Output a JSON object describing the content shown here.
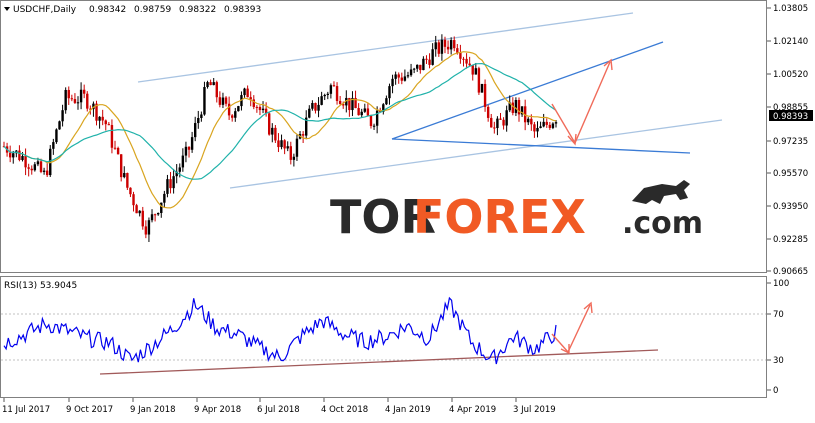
{
  "header": {
    "symbol_label": "USDCHF,Daily",
    "ohlc_values": [
      "0.98342",
      "0.98759",
      "0.98322",
      "0.98393"
    ]
  },
  "price_panel": {
    "y_ticks": [
      "1.03805",
      "1.02140",
      "1.00520",
      "0.98855",
      "0.97235",
      "0.95570",
      "0.93950",
      "0.92285",
      "0.90665"
    ],
    "current_price_label": "0.98393"
  },
  "rsi_panel": {
    "label": "RSI(13) 53.9045",
    "y_ticks": [
      "100",
      "70",
      "30",
      "0"
    ]
  },
  "x_axis": {
    "ticks": [
      "11 Jul 2017",
      "9 Oct 2017",
      "9 Jan 2018",
      "9 Apr 2018",
      "6 Jul 2018",
      "4 Oct 2018",
      "4 Jan 2019",
      "4 Apr 2019",
      "3 Jul 2019"
    ]
  },
  "watermark": {
    "prefix": "TOR",
    "main": "FOREX",
    "suffix": ".com"
  },
  "colors": {
    "bull_candle": "#000000",
    "bear_candle": "#cc0000",
    "ma_fast": "#d9a520",
    "ma_slow": "#20b2aa",
    "channel_outer": "#a9c4e2",
    "channel_inner": "#3a7bd5",
    "forecast_arrow": "#f06b5a",
    "rsi_line": "#0000ee",
    "rsi_trend": "#a15a5a",
    "watermark_dark": "#2a2a2a",
    "watermark_accent": "#f15a24"
  },
  "chart_data": [
    {
      "type": "candlestick",
      "title": "USDCHF,Daily",
      "x_start": "11 Jul 2017",
      "x_end": "3 Jul 2019",
      "ylim": [
        0.90665,
        1.03805
      ],
      "grid": false,
      "approx_close_path": [
        {
          "x": "11 Jul 2017",
          "y": 0.969
        },
        {
          "x": "Aug 2017",
          "y": 0.963
        },
        {
          "x": "Sep 2017",
          "y": 0.954
        },
        {
          "x": "9 Oct 2017",
          "y": 0.993
        },
        {
          "x": "Nov 2017",
          "y": 0.993
        },
        {
          "x": "Dec 2017",
          "y": 0.98
        },
        {
          "x": "9 Jan 2018",
          "y": 0.949
        },
        {
          "x": "Feb 2018",
          "y": 0.928
        },
        {
          "x": "Mar 2018",
          "y": 0.949
        },
        {
          "x": "9 Apr 2018",
          "y": 0.966
        },
        {
          "x": "May 2018",
          "y": 1.001
        },
        {
          "x": "Jun 2018",
          "y": 0.985
        },
        {
          "x": "6 Jul 2018",
          "y": 0.997
        },
        {
          "x": "Aug 2018",
          "y": 0.978
        },
        {
          "x": "Sep 2018",
          "y": 0.963
        },
        {
          "x": "4 Oct 2018",
          "y": 0.986
        },
        {
          "x": "Nov 2018",
          "y": 0.999
        },
        {
          "x": "Dec 2018",
          "y": 0.989
        },
        {
          "x": "4 Jan 2019",
          "y": 0.981
        },
        {
          "x": "Feb 2019",
          "y": 1.003
        },
        {
          "x": "Mar 2019",
          "y": 1.005
        },
        {
          "x": "4 Apr 2019",
          "y": 1.016
        },
        {
          "x": "Apr 2019",
          "y": 1.022
        },
        {
          "x": "May 2019",
          "y": 1.007
        },
        {
          "x": "Jun 2019",
          "y": 0.977
        },
        {
          "x": "3 Jul 2019",
          "y": 0.99
        },
        {
          "x": "Jul 2019",
          "y": 0.975
        },
        {
          "x": "Jul 2019 end",
          "y": 0.984
        }
      ]
    },
    {
      "type": "line",
      "title": "RSI(13) 53.9045",
      "ylim": [
        0,
        100
      ],
      "levels": [
        70,
        30
      ],
      "current": 53.9045,
      "approx_path": [
        {
          "x": "11 Jul 2017",
          "y": 44
        },
        {
          "x": "Aug 2017",
          "y": 52
        },
        {
          "x": "Sep 2017",
          "y": 62
        },
        {
          "x": "9 Oct 2017",
          "y": 55
        },
        {
          "x": "Nov 2017",
          "y": 48
        },
        {
          "x": "Dec 2017",
          "y": 44
        },
        {
          "x": "9 Jan 2018",
          "y": 28
        },
        {
          "x": "Feb 2018",
          "y": 42
        },
        {
          "x": "Mar 2018",
          "y": 58
        },
        {
          "x": "9 Apr 2018",
          "y": 80
        },
        {
          "x": "May 2018",
          "y": 58
        },
        {
          "x": "Jun 2018",
          "y": 52
        },
        {
          "x": "6 Jul 2018",
          "y": 40
        },
        {
          "x": "Aug 2018",
          "y": 30
        },
        {
          "x": "Sep 2018",
          "y": 50
        },
        {
          "x": "4 Oct 2018",
          "y": 65
        },
        {
          "x": "Nov 2018",
          "y": 52
        },
        {
          "x": "Dec 2018",
          "y": 45
        },
        {
          "x": "4 Jan 2019",
          "y": 50
        },
        {
          "x": "Feb 2019",
          "y": 60
        },
        {
          "x": "Mar 2019",
          "y": 48
        },
        {
          "x": "4 Apr 2019",
          "y": 80
        },
        {
          "x": "May 2019",
          "y": 45
        },
        {
          "x": "Jun 2019",
          "y": 28
        },
        {
          "x": "3 Jul 2019",
          "y": 50
        },
        {
          "x": "Jul 2019",
          "y": 38
        },
        {
          "x": "Jul 2019 end",
          "y": 54
        }
      ]
    }
  ]
}
